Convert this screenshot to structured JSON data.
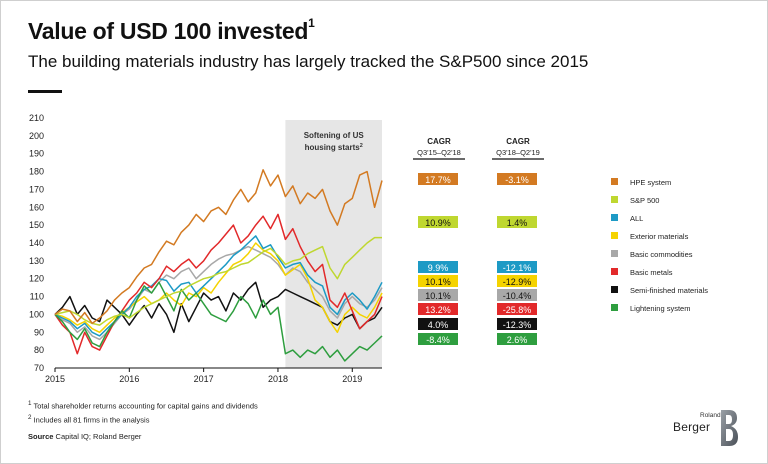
{
  "header": {
    "title": "Value of USD 100 invested",
    "title_sup": "1",
    "subtitle": "The building materials industry has largely tracked the S&P500 since 2015"
  },
  "chart_data": {
    "type": "line",
    "title": "Value of USD 100 invested",
    "ylim": [
      70,
      210
    ],
    "yticks": [
      70,
      80,
      90,
      100,
      110,
      120,
      130,
      140,
      150,
      160,
      170,
      180,
      190,
      200,
      210
    ],
    "xlim": [
      2015.0,
      2019.4
    ],
    "xticks": [
      2015,
      2016,
      2017,
      2018,
      2019
    ],
    "shaded_region": {
      "x0": 2018.1,
      "x1": 2019.4,
      "label_line1": "Softening of US",
      "label_line2": "housing starts",
      "label_sup": "2",
      "color": "#e6e6e6"
    },
    "series": [
      {
        "name": "HPE system",
        "color": "#d37a22",
        "cagr1": "17.7%",
        "cagr2": "-3.1%",
        "x": [
          2015.0,
          2015.1,
          2015.2,
          2015.3,
          2015.4,
          2015.5,
          2015.6,
          2015.7,
          2015.8,
          2015.9,
          2016.0,
          2016.1,
          2016.2,
          2016.3,
          2016.4,
          2016.5,
          2016.6,
          2016.7,
          2016.8,
          2016.9,
          2017.0,
          2017.1,
          2017.2,
          2017.3,
          2017.4,
          2017.5,
          2017.6,
          2017.7,
          2017.8,
          2017.9,
          2018.0,
          2018.1,
          2018.2,
          2018.3,
          2018.4,
          2018.5,
          2018.6,
          2018.7,
          2018.8,
          2018.9,
          2019.0,
          2019.1,
          2019.2,
          2019.3,
          2019.4
        ],
        "values": [
          100,
          103,
          102,
          96,
          101,
          95,
          98,
          102,
          108,
          112,
          115,
          121,
          126,
          128,
          135,
          141,
          139,
          146,
          150,
          156,
          152,
          158,
          160,
          156,
          164,
          170,
          163,
          168,
          181,
          172,
          178,
          166,
          172,
          162,
          168,
          165,
          170,
          158,
          150,
          162,
          165,
          178,
          180,
          160,
          175
        ]
      },
      {
        "name": "S&P 500",
        "color": "#bfd730",
        "cagr1": "10.9%",
        "cagr2": "1.4%",
        "x": [
          2015.0,
          2015.1,
          2015.2,
          2015.3,
          2015.4,
          2015.5,
          2015.6,
          2015.7,
          2015.8,
          2015.9,
          2016.0,
          2016.1,
          2016.2,
          2016.3,
          2016.4,
          2016.5,
          2016.6,
          2016.7,
          2016.8,
          2016.9,
          2017.0,
          2017.1,
          2017.2,
          2017.3,
          2017.4,
          2017.5,
          2017.6,
          2017.7,
          2017.8,
          2017.9,
          2018.0,
          2018.1,
          2018.2,
          2018.3,
          2018.4,
          2018.5,
          2018.6,
          2018.7,
          2018.8,
          2018.9,
          2019.0,
          2019.1,
          2019.2,
          2019.3,
          2019.4
        ],
        "values": [
          100,
          101,
          102,
          100,
          97,
          95,
          94,
          97,
          99,
          100,
          98,
          101,
          104,
          106,
          108,
          110,
          112,
          113,
          116,
          118,
          120,
          121,
          123,
          124,
          126,
          128,
          129,
          132,
          135,
          137,
          133,
          128,
          130,
          131,
          134,
          136,
          138,
          126,
          120,
          128,
          132,
          136,
          140,
          143,
          143
        ]
      },
      {
        "name": "ALL",
        "color": "#1d9ac5",
        "cagr1": "9.9%",
        "cagr2": "-12.1%",
        "x": [
          2015.0,
          2015.1,
          2015.2,
          2015.3,
          2015.4,
          2015.5,
          2015.6,
          2015.7,
          2015.8,
          2015.9,
          2016.0,
          2016.1,
          2016.2,
          2016.3,
          2016.4,
          2016.5,
          2016.6,
          2016.7,
          2016.8,
          2016.9,
          2017.0,
          2017.1,
          2017.2,
          2017.3,
          2017.4,
          2017.5,
          2017.6,
          2017.7,
          2017.8,
          2017.9,
          2018.0,
          2018.1,
          2018.2,
          2018.3,
          2018.4,
          2018.5,
          2018.6,
          2018.7,
          2018.8,
          2018.9,
          2019.0,
          2019.1,
          2019.2,
          2019.3,
          2019.4
        ],
        "values": [
          100,
          98,
          96,
          92,
          95,
          90,
          88,
          92,
          96,
          100,
          104,
          110,
          114,
          116,
          120,
          119,
          113,
          117,
          118,
          112,
          116,
          120,
          124,
          128,
          133,
          136,
          140,
          144,
          137,
          139,
          132,
          126,
          128,
          129,
          122,
          118,
          116,
          104,
          100,
          108,
          112,
          108,
          103,
          110,
          118
        ]
      },
      {
        "name": "Exterior materials",
        "color": "#f5d300",
        "cagr1": "10.1%",
        "cagr2": "-12.9%",
        "x": [
          2015.0,
          2015.1,
          2015.2,
          2015.3,
          2015.4,
          2015.5,
          2015.6,
          2015.7,
          2015.8,
          2015.9,
          2016.0,
          2016.1,
          2016.2,
          2016.3,
          2016.4,
          2016.5,
          2016.6,
          2016.7,
          2016.8,
          2016.9,
          2017.0,
          2017.1,
          2017.2,
          2017.3,
          2017.4,
          2017.5,
          2017.6,
          2017.7,
          2017.8,
          2017.9,
          2018.0,
          2018.1,
          2018.2,
          2018.3,
          2018.4,
          2018.5,
          2018.6,
          2018.7,
          2018.8,
          2018.9,
          2019.0,
          2019.1,
          2019.2,
          2019.3,
          2019.4
        ],
        "values": [
          100,
          99,
          97,
          94,
          96,
          92,
          90,
          94,
          98,
          101,
          104,
          107,
          110,
          106,
          108,
          112,
          108,
          105,
          112,
          110,
          115,
          112,
          118,
          123,
          128,
          130,
          134,
          140,
          136,
          134,
          130,
          122,
          125,
          128,
          120,
          108,
          104,
          96,
          90,
          100,
          104,
          100,
          98,
          104,
          112
        ]
      },
      {
        "name": "Basic commodities",
        "color": "#a8a8a8",
        "cagr1": "10.1%",
        "cagr2": "-10.4%",
        "x": [
          2015.0,
          2015.1,
          2015.2,
          2015.3,
          2015.4,
          2015.5,
          2015.6,
          2015.7,
          2015.8,
          2015.9,
          2016.0,
          2016.1,
          2016.2,
          2016.3,
          2016.4,
          2016.5,
          2016.6,
          2016.7,
          2016.8,
          2016.9,
          2017.0,
          2017.1,
          2017.2,
          2017.3,
          2017.4,
          2017.5,
          2017.6,
          2017.7,
          2017.8,
          2017.9,
          2018.0,
          2018.1,
          2018.2,
          2018.3,
          2018.4,
          2018.5,
          2018.6,
          2018.7,
          2018.8,
          2018.9,
          2019.0,
          2019.1,
          2019.2,
          2019.3,
          2019.4
        ],
        "values": [
          100,
          97,
          95,
          90,
          93,
          88,
          86,
          90,
          95,
          100,
          103,
          108,
          114,
          112,
          118,
          122,
          120,
          124,
          126,
          120,
          124,
          128,
          131,
          133,
          134,
          136,
          138,
          136,
          134,
          132,
          128,
          122,
          126,
          124,
          118,
          114,
          110,
          102,
          98,
          106,
          110,
          106,
          104,
          108,
          115
        ]
      },
      {
        "name": "Basic metals",
        "color": "#e2292a",
        "cagr1": "13.2%",
        "cagr2": "-25.8%",
        "x": [
          2015.0,
          2015.1,
          2015.2,
          2015.3,
          2015.4,
          2015.5,
          2015.6,
          2015.7,
          2015.8,
          2015.9,
          2016.0,
          2016.1,
          2016.2,
          2016.3,
          2016.4,
          2016.5,
          2016.6,
          2016.7,
          2016.8,
          2016.9,
          2017.0,
          2017.1,
          2017.2,
          2017.3,
          2017.4,
          2017.5,
          2017.6,
          2017.7,
          2017.8,
          2017.9,
          2018.0,
          2018.1,
          2018.2,
          2018.3,
          2018.4,
          2018.5,
          2018.6,
          2018.7,
          2018.8,
          2018.9,
          2019.0,
          2019.1,
          2019.2,
          2019.3,
          2019.4
        ],
        "values": [
          100,
          94,
          90,
          78,
          90,
          82,
          80,
          88,
          96,
          102,
          108,
          112,
          118,
          115,
          120,
          127,
          124,
          128,
          131,
          126,
          130,
          136,
          140,
          145,
          150,
          140,
          144,
          150,
          155,
          148,
          156,
          142,
          148,
          138,
          130,
          124,
          128,
          108,
          104,
          112,
          102,
          92,
          96,
          100,
          110
        ]
      },
      {
        "name": "Semi-finished materials",
        "color": "#111111",
        "cagr1": "4.0%",
        "cagr2": "-12.3%",
        "x": [
          2015.0,
          2015.1,
          2015.2,
          2015.3,
          2015.4,
          2015.5,
          2015.6,
          2015.7,
          2015.8,
          2015.9,
          2016.0,
          2016.1,
          2016.2,
          2016.3,
          2016.4,
          2016.5,
          2016.6,
          2016.7,
          2016.8,
          2016.9,
          2017.0,
          2017.1,
          2017.2,
          2017.3,
          2017.4,
          2017.5,
          2017.6,
          2017.7,
          2017.8,
          2017.9,
          2018.0,
          2018.1,
          2018.2,
          2018.3,
          2018.4,
          2018.5,
          2018.6,
          2018.7,
          2018.8,
          2018.9,
          2019.0,
          2019.1,
          2019.2,
          2019.3,
          2019.4
        ],
        "values": [
          100,
          104,
          110,
          100,
          105,
          98,
          96,
          108,
          104,
          100,
          94,
          100,
          105,
          98,
          106,
          100,
          90,
          106,
          96,
          104,
          112,
          108,
          110,
          102,
          112,
          108,
          114,
          118,
          104,
          108,
          110,
          114,
          112,
          110,
          108,
          106,
          104,
          96,
          94,
          98,
          100,
          92,
          96,
          98,
          104
        ]
      },
      {
        "name": "Lightening system",
        "color": "#2e9e3f",
        "cagr1": "-8.4%",
        "cagr2": "2.6%",
        "x": [
          2015.0,
          2015.1,
          2015.2,
          2015.3,
          2015.4,
          2015.5,
          2015.6,
          2015.7,
          2015.8,
          2015.9,
          2016.0,
          2016.1,
          2016.2,
          2016.3,
          2016.4,
          2016.5,
          2016.6,
          2016.7,
          2016.8,
          2016.9,
          2017.0,
          2017.1,
          2017.2,
          2017.3,
          2017.4,
          2017.5,
          2017.6,
          2017.7,
          2017.8,
          2017.9,
          2018.0,
          2018.1,
          2018.2,
          2018.3,
          2018.4,
          2018.5,
          2018.6,
          2018.7,
          2018.8,
          2018.9,
          2019.0,
          2019.1,
          2019.2,
          2019.3,
          2019.4
        ],
        "values": [
          100,
          96,
          90,
          86,
          92,
          84,
          82,
          90,
          96,
          102,
          98,
          108,
          116,
          112,
          118,
          110,
          102,
          114,
          108,
          112,
          106,
          100,
          98,
          96,
          102,
          110,
          106,
          98,
          108,
          100,
          104,
          78,
          80,
          76,
          80,
          78,
          82,
          76,
          80,
          74,
          78,
          82,
          80,
          84,
          88
        ]
      }
    ],
    "cagr_headers": [
      {
        "line1": "CAGR",
        "line2": "Q3'15–Q2'18"
      },
      {
        "line1": "CAGR",
        "line2": "Q3'18–Q2'19"
      }
    ]
  },
  "footnotes": {
    "note1": "Total shareholder returns accounting for capital gains and dividends",
    "note1_mark": "1",
    "note2": "Includes all 81 firms in the analysis",
    "note2_mark": "2",
    "source_label": "Source",
    "source_text": "Capital IQ; Roland Berger"
  },
  "logo": {
    "line1": "Roland",
    "line2": "Berger"
  }
}
